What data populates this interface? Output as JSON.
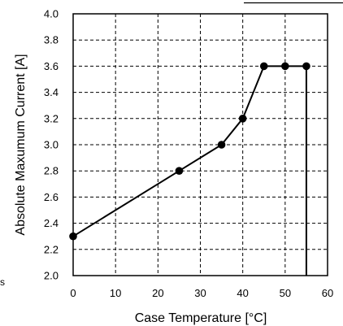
{
  "chart_data": {
    "type": "line",
    "title": "",
    "xlabel": "Case Temperature [°C]",
    "ylabel": "Absolute Maxumum Current [A]",
    "xlim": [
      0,
      60
    ],
    "ylim": [
      2.0,
      4.0
    ],
    "x_ticks": [
      0,
      10,
      20,
      30,
      40,
      50,
      60
    ],
    "x_tick_labels": [
      "0",
      "10",
      "20",
      "30",
      "40",
      "50",
      "60"
    ],
    "y_ticks": [
      2.0,
      2.2,
      2.4,
      2.6,
      2.8,
      3.0,
      3.2,
      3.4,
      3.6,
      3.8,
      4.0
    ],
    "y_tick_labels": [
      "2.0",
      "2.2",
      "2.4",
      "2.6",
      "2.8",
      "3.0",
      "3.2",
      "3.4",
      "3.6",
      "3.8",
      "4.0"
    ],
    "grid": true,
    "grid_style": "dashed",
    "series": [
      {
        "x": [
          0,
          25,
          35,
          40,
          45,
          50,
          55
        ],
        "y": [
          2.3,
          2.8,
          3.0,
          3.2,
          3.6,
          3.6,
          3.6
        ],
        "marker": "circle",
        "color": "#000000",
        "drop_to_axis_at_end": true
      }
    ]
  },
  "stray_text": "s"
}
